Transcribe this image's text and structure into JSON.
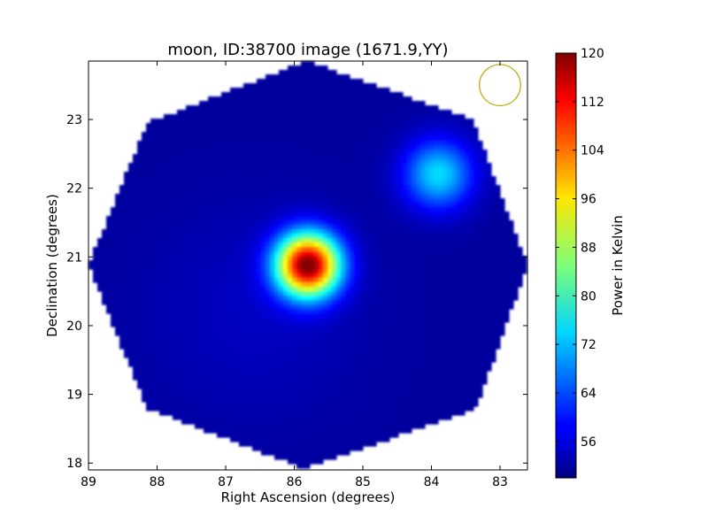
{
  "chart_data": {
    "type": "heatmap",
    "title": "moon, ID:38700 image (1671.9,YY)",
    "xlabel": "Right Ascension (degrees)",
    "ylabel": "Declination (degrees)",
    "xlim": [
      89.0,
      82.6
    ],
    "ylim": [
      17.9,
      23.85
    ],
    "x_reversed": true,
    "x_ticks": [
      "89",
      "88",
      "87",
      "86",
      "85",
      "84",
      "83"
    ],
    "x_tick_values": [
      89,
      88,
      87,
      86,
      85,
      84,
      83
    ],
    "y_ticks": [
      "18",
      "19",
      "20",
      "21",
      "22",
      "23"
    ],
    "y_tick_values": [
      18,
      19,
      20,
      21,
      22,
      23
    ],
    "footprint": {
      "shape": "octagon",
      "center": [
        85.8,
        20.88
      ],
      "vertices": [
        [
          85.82,
          23.85
        ],
        [
          83.4,
          23.0
        ],
        [
          82.6,
          20.88
        ],
        [
          83.35,
          18.8
        ],
        [
          85.85,
          17.92
        ],
        [
          88.15,
          18.8
        ],
        [
          89.0,
          20.88
        ],
        [
          88.15,
          22.95
        ]
      ],
      "background_level": 52
    },
    "sources": [
      {
        "ra": 85.8,
        "dec": 20.88,
        "peak": 120,
        "sigma_deg": 0.32
      },
      {
        "ra": 83.9,
        "dec": 22.2,
        "peak": 74,
        "sigma_deg": 0.35
      }
    ],
    "beam": {
      "ra": 83.0,
      "dec": 23.5,
      "radius_deg": 0.3,
      "color": "#b8a800"
    },
    "colorbar": {
      "label": "Power in Kelvin",
      "min": 50,
      "max": 120,
      "ticks": [
        "56",
        "64",
        "72",
        "80",
        "88",
        "96",
        "104",
        "112",
        "120"
      ],
      "tick_values": [
        56,
        64,
        72,
        80,
        88,
        96,
        104,
        112,
        120
      ],
      "colormap": "jet"
    },
    "grid": false
  }
}
